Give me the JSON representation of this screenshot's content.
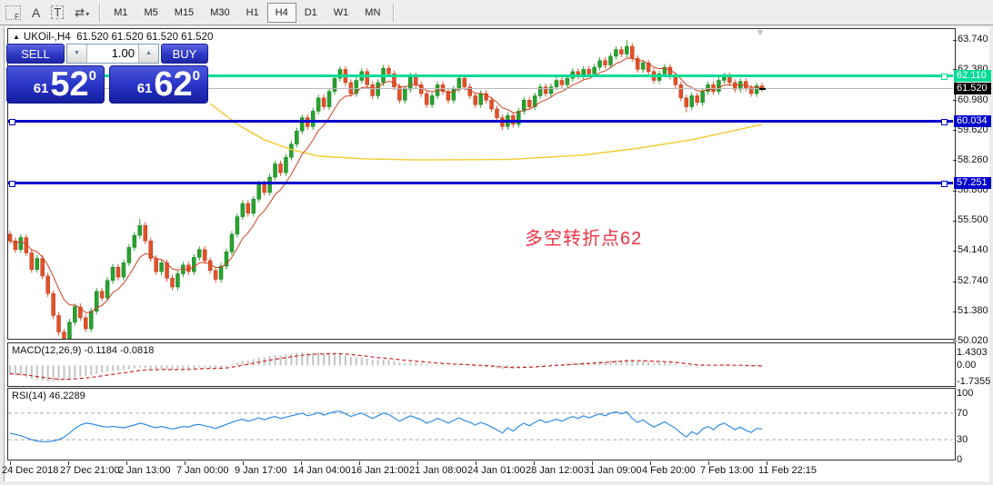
{
  "toolbar": {
    "icons": [
      {
        "name": "effects-grid-icon",
        "glyph": "F"
      },
      {
        "name": "text-annotation-icon",
        "glyph": "A"
      },
      {
        "name": "text-label-icon",
        "glyph": "T"
      },
      {
        "name": "cycle-lines-icon",
        "glyph": "⇄"
      },
      {
        "name": "dropdown-caret-icon",
        "glyph": "▾"
      }
    ],
    "timeframes": [
      "M1",
      "M5",
      "M15",
      "M30",
      "H1",
      "H4",
      "D1",
      "W1",
      "MN"
    ],
    "active_timeframe": "H4"
  },
  "chart": {
    "title_arrow": "▲",
    "symbol": "UKOil-,H4",
    "quotes": "61.520 61.520 61.520 61.520",
    "shift_marker": "▼"
  },
  "trade_panel": {
    "sell_label": "SELL",
    "buy_label": "BUY",
    "volume": "1.00",
    "stepper_down": "▼",
    "stepper_up": "▲",
    "sell_small": "61",
    "sell_big": "52",
    "sell_sup": "0",
    "buy_small": "61",
    "buy_big": "62",
    "buy_sup": "0"
  },
  "annotation": {
    "text": "多空转折点62",
    "color": "#ee3344"
  },
  "price_axis": [
    {
      "text": "63.740",
      "price": 63.74,
      "style": "plain"
    },
    {
      "text": "62.380",
      "price": 62.38,
      "style": "plain"
    },
    {
      "text": "62.110",
      "price": 62.11,
      "style": "green"
    },
    {
      "text": "61.520",
      "price": 61.52,
      "style": "black"
    },
    {
      "text": "60.980",
      "price": 60.98,
      "style": "plain"
    },
    {
      "text": "60.034",
      "price": 60.034,
      "style": "blue"
    },
    {
      "text": "59.620",
      "price": 59.62,
      "style": "plain"
    },
    {
      "text": "58.260",
      "price": 58.26,
      "style": "plain"
    },
    {
      "text": "57.251",
      "price": 57.251,
      "style": "blue"
    },
    {
      "text": "56.860",
      "price": 56.86,
      "style": "plain"
    },
    {
      "text": "55.500",
      "price": 55.5,
      "style": "plain"
    },
    {
      "text": "54.140",
      "price": 54.14,
      "style": "plain"
    },
    {
      "text": "52.740",
      "price": 52.74,
      "style": "plain"
    },
    {
      "text": "51.380",
      "price": 51.38,
      "style": "plain"
    },
    {
      "text": "50.020",
      "price": 50.02,
      "style": "plain"
    }
  ],
  "chart_data": {
    "type": "candlestick",
    "symbol": "UKOil-,H4",
    "last_price": 61.52,
    "colors": {
      "bull": "#27a22e",
      "bull_edge": "#1e7d24",
      "bear": "#e2512a",
      "bear_edge": "#b53c1d",
      "ma_fast": "#d04020",
      "ma_slow": "#f2cb2e",
      "bid_line": "#bbbbbb",
      "level_green": "#00dc96",
      "level_blue": "#0000cd",
      "macd_hist": "#c4c4c4",
      "macd_signal": "#cc2222",
      "rsi_line": "#2f8de4"
    },
    "hlines": [
      {
        "price": 62.11,
        "color": "#00dc96",
        "width": 3,
        "handles": true
      },
      {
        "price": 61.52,
        "color": "#bbbbbb",
        "width": 1,
        "handles": false
      },
      {
        "price": 60.034,
        "color": "#0000cd",
        "width": 3,
        "handles": true
      },
      {
        "price": 57.251,
        "color": "#0000cd",
        "width": 3,
        "handles": true
      }
    ],
    "closes": [
      54.6,
      54.2,
      54.75,
      54.05,
      53.3,
      53.8,
      53.0,
      52.2,
      51.2,
      50.45,
      50.15,
      50.9,
      51.6,
      51.1,
      50.6,
      51.4,
      52.3,
      52.0,
      52.8,
      53.4,
      52.95,
      53.6,
      54.3,
      54.85,
      55.3,
      54.6,
      53.8,
      53.2,
      53.6,
      52.9,
      52.5,
      53.1,
      53.5,
      53.2,
      53.85,
      54.2,
      53.7,
      53.25,
      52.85,
      53.45,
      54.1,
      54.9,
      55.7,
      56.3,
      55.85,
      56.5,
      57.2,
      56.8,
      57.5,
      58.1,
      57.7,
      58.4,
      59.0,
      59.6,
      60.2,
      59.8,
      60.5,
      61.1,
      60.7,
      61.4,
      62.0,
      62.4,
      61.8,
      61.3,
      61.9,
      62.3,
      61.7,
      61.2,
      61.8,
      62.45,
      62.2,
      61.6,
      61.0,
      61.5,
      62.1,
      61.7,
      61.3,
      60.8,
      61.2,
      61.7,
      61.4,
      61.0,
      61.5,
      62.0,
      61.6,
      61.2,
      60.8,
      61.3,
      61.0,
      60.6,
      60.2,
      59.8,
      60.3,
      59.9,
      60.5,
      61.0,
      60.7,
      61.2,
      61.6,
      61.3,
      61.6,
      61.9,
      61.7,
      62.0,
      62.3,
      62.1,
      62.4,
      62.2,
      62.5,
      62.8,
      62.6,
      63.0,
      63.3,
      63.1,
      63.45,
      62.9,
      62.4,
      62.7,
      62.3,
      61.9,
      62.2,
      62.5,
      62.1,
      61.7,
      61.1,
      60.7,
      61.2,
      60.9,
      61.4,
      61.7,
      61.4,
      61.9,
      62.1,
      61.8,
      61.5,
      61.85,
      61.55,
      61.3,
      61.65,
      61.52
    ],
    "wick_overrides": {
      "10": {
        "low": 50.3
      },
      "24": {
        "high": 55.6
      },
      "114": {
        "high": 63.74
      },
      "125": {
        "low": 60.45
      }
    },
    "ma_fast_period": 8,
    "ma_slow_path": [
      [
        0.266,
        60.85
      ],
      [
        0.302,
        59.9
      ],
      [
        0.338,
        59.2
      ],
      [
        0.374,
        58.75
      ],
      [
        0.411,
        58.45
      ],
      [
        0.471,
        58.33
      ],
      [
        0.543,
        58.28
      ],
      [
        0.664,
        58.3
      ],
      [
        0.761,
        58.5
      ],
      [
        0.833,
        58.8
      ],
      [
        0.906,
        59.2
      ],
      [
        0.954,
        59.55
      ],
      [
        1.0,
        59.9
      ]
    ],
    "macd": {
      "label": "MACD(12,26,9) -0.1184 -0.0818",
      "signal_period": 9,
      "axis": [
        {
          "text": "1.4303",
          "v": 1.4303
        },
        {
          "text": "0.00",
          "v": 0.0
        },
        {
          "text": "-1.7355",
          "v": -1.7355
        }
      ],
      "values": [
        -0.9,
        -1.05,
        -1.15,
        -1.3,
        -1.45,
        -1.55,
        -1.62,
        -1.7,
        -1.74,
        -1.7,
        -1.6,
        -1.45,
        -1.3,
        -1.2,
        -1.15,
        -1.05,
        -0.9,
        -0.8,
        -0.7,
        -0.6,
        -0.55,
        -0.5,
        -0.4,
        -0.3,
        -0.2,
        -0.25,
        -0.35,
        -0.45,
        -0.4,
        -0.45,
        -0.5,
        -0.45,
        -0.38,
        -0.35,
        -0.28,
        -0.2,
        -0.22,
        -0.28,
        -0.32,
        -0.25,
        -0.1,
        0.1,
        0.3,
        0.5,
        0.55,
        0.7,
        0.85,
        0.9,
        1.0,
        1.1,
        1.1,
        1.2,
        1.3,
        1.38,
        1.43,
        1.38,
        1.4,
        1.42,
        1.35,
        1.33,
        1.3,
        1.25,
        1.1,
        0.95,
        0.9,
        0.85,
        0.75,
        0.62,
        0.6,
        0.62,
        0.58,
        0.48,
        0.35,
        0.3,
        0.32,
        0.28,
        0.22,
        0.12,
        0.08,
        0.1,
        0.08,
        0.02,
        0.0,
        0.05,
        0.02,
        -0.05,
        -0.12,
        -0.1,
        -0.15,
        -0.22,
        -0.3,
        -0.38,
        -0.32,
        -0.35,
        -0.25,
        -0.12,
        -0.1,
        -0.02,
        0.05,
        0.08,
        0.12,
        0.18,
        0.15,
        0.22,
        0.3,
        0.28,
        0.35,
        0.32,
        0.4,
        0.48,
        0.45,
        0.55,
        0.62,
        0.6,
        0.68,
        0.6,
        0.5,
        0.52,
        0.42,
        0.3,
        0.32,
        0.36,
        0.28,
        0.18,
        0.02,
        -0.15,
        -0.1,
        -0.18,
        -0.08,
        0.0,
        -0.04,
        0.06,
        0.1,
        0.02,
        -0.04,
        0.0,
        -0.06,
        -0.1,
        -0.06,
        -0.1184
      ]
    },
    "rsi": {
      "label": "RSI(14) 46.2289",
      "axis": [
        {
          "text": "100",
          "v": 100
        },
        {
          "text": "70",
          "v": 70
        },
        {
          "text": "30",
          "v": 30
        },
        {
          "text": "0",
          "v": 0
        }
      ],
      "levels": [
        70,
        30
      ],
      "values": [
        40,
        38,
        36,
        33,
        30,
        28,
        27,
        27,
        28,
        30,
        34,
        40,
        47,
        52,
        55,
        54,
        52,
        50,
        49,
        50,
        49,
        48,
        50,
        52,
        55,
        53,
        50,
        48,
        50,
        48,
        46,
        48,
        50,
        49,
        52,
        53,
        51,
        49,
        47,
        50,
        53,
        56,
        59,
        61,
        58,
        60,
        63,
        60,
        63,
        65,
        62,
        64,
        66,
        68,
        70,
        66,
        68,
        71,
        67,
        70,
        72,
        73,
        69,
        65,
        68,
        70,
        66,
        62,
        66,
        70,
        68,
        63,
        58,
        62,
        66,
        63,
        60,
        55,
        58,
        62,
        59,
        55,
        59,
        63,
        59,
        56,
        52,
        56,
        53,
        49,
        45,
        40,
        48,
        43,
        50,
        55,
        51,
        56,
        60,
        56,
        58,
        61,
        58,
        62,
        65,
        62,
        66,
        63,
        66,
        69,
        66,
        70,
        72,
        69,
        72,
        62,
        56,
        60,
        54,
        49,
        53,
        57,
        52,
        47,
        40,
        34,
        42,
        38,
        46,
        50,
        45,
        52,
        55,
        50,
        45,
        49,
        44,
        41,
        47,
        46
      ]
    },
    "dates": [
      "24 Dec 2018",
      "27 Dec 21:00",
      "2 Jan 13:00",
      "7 Jan 00:00",
      "9 Jan 17:00",
      "14 Jan 04:00",
      "16 Jan 21:00",
      "21 Jan 08:00",
      "24 Jan 01:00",
      "28 Jan 12:00",
      "31 Jan 09:00",
      "4 Feb 20:00",
      "7 Feb 13:00",
      "11 Feb 22:15"
    ]
  }
}
